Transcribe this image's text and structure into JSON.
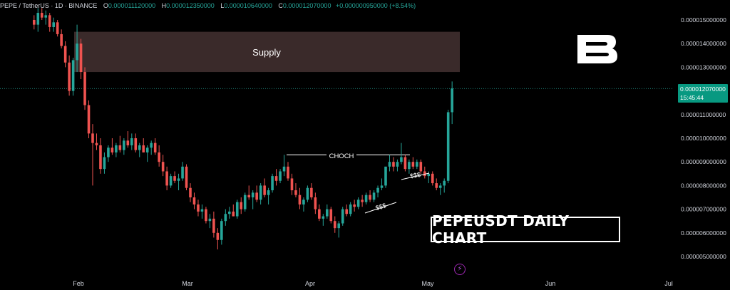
{
  "header": {
    "symbol": "PEPE / TetherUS · 1D · BINANCE",
    "o_label": "O",
    "o_value": "0.000011120000",
    "h_label": "H",
    "h_value": "0.000012350000",
    "l_label": "L",
    "l_value": "0.000010640000",
    "c_label": "C",
    "c_value": "0.000012070000",
    "change": "+0.000000950000 (+8.54%)"
  },
  "colors": {
    "up": "#26a69a",
    "down": "#ef5350",
    "supply": "#3a2a2a",
    "background": "#000000"
  },
  "title_box": "PEPEUSDT DAILY CHART",
  "price_tag": {
    "price": "0.000012070000",
    "countdown": "15:45:44"
  },
  "annotations": {
    "supply": "Supply",
    "choch": "CHOCH",
    "liq1": "$$$",
    "liq2": "$$$"
  },
  "chart_data": {
    "type": "candlestick",
    "y_axis_ticks": [
      "0.000015000000",
      "0.000014000000",
      "0.000013000000",
      "0.000012000000",
      "0.000011000000",
      "0.000010000000",
      "0.000009000000",
      "0.000008000000",
      "0.000007000000",
      "0.000006000000",
      "0.000005000000"
    ],
    "x_axis_ticks": [
      "Feb",
      "Mar",
      "Apr",
      "May",
      "Jun",
      "Jul"
    ],
    "ylim": [
      4.5e-06,
      1.59e-05
    ],
    "supply_zone": [
      1.28e-05,
      1.45e-05
    ],
    "choch_level": 9.3e-06,
    "candles": [
      [
        1.5e-05,
        1.52e-05,
        1.46e-05,
        1.48e-05
      ],
      [
        1.48e-05,
        1.55e-05,
        1.45e-05,
        1.53e-05
      ],
      [
        1.53e-05,
        1.55e-05,
        1.5e-05,
        1.51e-05
      ],
      [
        1.51e-05,
        1.54e-05,
        1.48e-05,
        1.52e-05
      ],
      [
        1.52e-05,
        1.53e-05,
        1.45e-05,
        1.47e-05
      ],
      [
        1.47e-05,
        1.51e-05,
        1.45e-05,
        1.49e-05
      ],
      [
        1.49e-05,
        1.5e-05,
        1.43e-05,
        1.44e-05
      ],
      [
        1.44e-05,
        1.46e-05,
        1.38e-05,
        1.39e-05
      ],
      [
        1.39e-05,
        1.41e-05,
        1.3e-05,
        1.32e-05
      ],
      [
        1.32e-05,
        1.35e-05,
        1.18e-05,
        1.2e-05
      ],
      [
        1.2e-05,
        1.34e-05,
        1.18e-05,
        1.33e-05
      ],
      [
        1.33e-05,
        1.48e-05,
        1.28e-05,
        1.4e-05
      ],
      [
        1.4e-05,
        1.42e-05,
        1.25e-05,
        1.28e-05
      ],
      [
        1.28e-05,
        1.3e-05,
        1.12e-05,
        1.14e-05
      ],
      [
        1.14e-05,
        1.16e-05,
        1e-05,
        1.02e-05
      ],
      [
        1.02e-05,
        1.06e-05,
        8e-06,
        9.8e-06
      ],
      [
        9.8e-06,
        1.02e-05,
        9.5e-06,
        9.7e-06
      ],
      [
        9.7e-06,
        1e-05,
        8.5e-06,
        8.7e-06
      ],
      [
        8.7e-06,
        9.4e-06,
        8.5e-06,
        9.2e-06
      ],
      [
        9.2e-06,
        9.7e-06,
        9e-06,
        9.6e-06
      ],
      [
        9.6e-06,
        1e-05,
        9.3e-06,
        9.4e-06
      ],
      [
        9.4e-06,
        9.8e-06,
        9.2e-06,
        9.7e-06
      ],
      [
        9.7e-06,
        1.01e-05,
        9.4e-06,
        9.5e-06
      ],
      [
        9.5e-06,
        1e-05,
        9.3e-06,
        9.9e-06
      ],
      [
        9.9e-06,
        1.03e-05,
        9.6e-06,
        9.7e-06
      ],
      [
        9.7e-06,
        1.02e-05,
        9.5e-06,
        1e-05
      ],
      [
        1e-05,
        1.02e-05,
        9.4e-06,
        9.5e-06
      ],
      [
        9.5e-06,
        9.8e-06,
        9.2e-06,
        9.7e-06
      ],
      [
        9.7e-06,
        1e-05,
        9.4e-06,
        9.4e-06
      ],
      [
        9.4e-06,
        9.7e-06,
        9e-06,
        9.6e-06
      ],
      [
        9.6e-06,
        9.9e-06,
        9.3e-06,
        9.8e-06
      ],
      [
        9.8e-06,
        1e-05,
        9.3e-06,
        9.4e-06
      ],
      [
        9.4e-06,
        9.7e-06,
        8.8e-06,
        9e-06
      ],
      [
        9e-06,
        9.3e-06,
        8.4e-06,
        8.6e-06
      ],
      [
        8.6e-06,
        8.8e-06,
        7.8e-06,
        8e-06
      ],
      [
        8e-06,
        8.5e-06,
        7.9e-06,
        8.4e-06
      ],
      [
        8.4e-06,
        8.6e-06,
        8.1e-06,
        8.2e-06
      ],
      [
        8.2e-06,
        8.5e-06,
        7.8e-06,
        8.3e-06
      ],
      [
        8.3e-06,
        9e-06,
        8.2e-06,
        8.8e-06
      ],
      [
        8.8e-06,
        8.9e-06,
        7.8e-06,
        7.9e-06
      ],
      [
        7.9e-06,
        8.1e-06,
        7.3e-06,
        7.5e-06
      ],
      [
        7.5e-06,
        7.7e-06,
        7e-06,
        7.2e-06
      ],
      [
        7.2e-06,
        7.4e-06,
        6.7e-06,
        6.9e-06
      ],
      [
        6.9e-06,
        7.2e-06,
        6.6e-06,
        7e-06
      ],
      [
        7e-06,
        7.1e-06,
        6.4e-06,
        6.5e-06
      ],
      [
        6.5e-06,
        6.8e-06,
        6.2e-06,
        6.6e-06
      ],
      [
        6.6e-06,
        6.9e-06,
        5.8e-06,
        6e-06
      ],
      [
        6e-06,
        6.2e-06,
        5.3e-06,
        5.7e-06
      ],
      [
        5.7e-06,
        6.6e-06,
        5.5e-06,
        6.5e-06
      ],
      [
        6.5e-06,
        7e-06,
        6.3e-06,
        6.8e-06
      ],
      [
        6.8e-06,
        7.1e-06,
        6.6e-06,
        6.9e-06
      ],
      [
        6.9e-06,
        7.2e-06,
        6.7e-06,
        6.7e-06
      ],
      [
        6.7e-06,
        7.4e-06,
        6.6e-06,
        7.3e-06
      ],
      [
        7.3e-06,
        7.5e-06,
        6.8e-06,
        7e-06
      ],
      [
        7e-06,
        7.7e-06,
        6.9e-06,
        7.6e-06
      ],
      [
        7.6e-06,
        8e-06,
        7.4e-06,
        7.5e-06
      ],
      [
        7.5e-06,
        7.8e-06,
        7e-06,
        7.7e-06
      ],
      [
        7.7e-06,
        8e-06,
        7.3e-06,
        7.4e-06
      ],
      [
        7.4e-06,
        8.1e-06,
        7.2e-06,
        8e-06
      ],
      [
        8e-06,
        8.3e-06,
        7.5e-06,
        7.6e-06
      ],
      [
        7.6e-06,
        7.9e-06,
        7.2e-06,
        7.8e-06
      ],
      [
        7.8e-06,
        8.5e-06,
        7.7e-06,
        8.4e-06
      ],
      [
        8.4e-06,
        8.7e-06,
        8e-06,
        8.2e-06
      ],
      [
        8.2e-06,
        8.7e-06,
        8.1e-06,
        8.6e-06
      ],
      [
        8.6e-06,
        9.3e-06,
        8.4e-06,
        8.8e-06
      ],
      [
        8.8e-06,
        9e-06,
        8.2e-06,
        8.3e-06
      ],
      [
        8.3e-06,
        8.5e-06,
        7.6e-06,
        7.8e-06
      ],
      [
        7.8e-06,
        8.1e-06,
        7.5e-06,
        7.6e-06
      ],
      [
        7.6e-06,
        7.9e-06,
        7e-06,
        7.2e-06
      ],
      [
        7.2e-06,
        7.5e-06,
        6.9e-06,
        7.4e-06
      ],
      [
        7.4e-06,
        8e-06,
        7.3e-06,
        7.9e-06
      ],
      [
        7.9e-06,
        8.1e-06,
        7.4e-06,
        7.5e-06
      ],
      [
        7.5e-06,
        7.7e-06,
        6.8e-06,
        7e-06
      ],
      [
        7e-06,
        7.2e-06,
        6.5e-06,
        6.6e-06
      ],
      [
        6.6e-06,
        6.8e-06,
        6.3e-06,
        6.7e-06
      ],
      [
        6.7e-06,
        7.2e-06,
        6.6e-06,
        7e-06
      ],
      [
        7e-06,
        7.1e-06,
        6.4e-06,
        6.5e-06
      ],
      [
        6.5e-06,
        6.7e-06,
        6e-06,
        6.2e-06
      ],
      [
        6.2e-06,
        6.5e-06,
        5.8e-06,
        6.4e-06
      ],
      [
        6.4e-06,
        7.1e-06,
        6.3e-06,
        7e-06
      ],
      [
        7e-06,
        7.2e-06,
        6.7e-06,
        6.8e-06
      ],
      [
        6.8e-06,
        7.3e-06,
        6.7e-06,
        7.2e-06
      ],
      [
        7.2e-06,
        7.4e-06,
        6.9e-06,
        7.1e-06
      ],
      [
        7.1e-06,
        7.5e-06,
        7e-06,
        7.4e-06
      ],
      [
        7.4e-06,
        7.6e-06,
        7.1e-06,
        7.3e-06
      ],
      [
        7.3e-06,
        7.7e-06,
        7.2e-06,
        7.6e-06
      ],
      [
        7.6e-06,
        7.8e-06,
        7.3e-06,
        7.4e-06
      ],
      [
        7.4e-06,
        7.8e-06,
        7.3e-06,
        7.7e-06
      ],
      [
        7.7e-06,
        8e-06,
        7.5e-06,
        7.9e-06
      ],
      [
        7.9e-06,
        8.3e-06,
        7.8e-06,
        8e-06
      ],
      [
        8e-06,
        8.8e-06,
        7.9e-06,
        8.8e-06
      ],
      [
        8.8e-06,
        9.3e-06,
        8.6e-06,
        9e-06
      ],
      [
        9e-06,
        9.2e-06,
        8.6e-06,
        8.8e-06
      ],
      [
        8.8e-06,
        9.1e-06,
        8.6e-06,
        9e-06
      ],
      [
        9e-06,
        9.8e-06,
        8.9e-06,
        9.2e-06
      ],
      [
        9.2e-06,
        9.3e-06,
        8.6e-06,
        8.7e-06
      ],
      [
        8.7e-06,
        9.1e-06,
        8.5e-06,
        9e-06
      ],
      [
        9e-06,
        9.2e-06,
        8.7e-06,
        8.8e-06
      ],
      [
        8.8e-06,
        9.1e-06,
        8.7e-06,
        9e-06
      ],
      [
        9e-06,
        9.1e-06,
        8.5e-06,
        8.6e-06
      ],
      [
        8.6e-06,
        8.8e-06,
        8.3e-06,
        8.4e-06
      ],
      [
        8.4e-06,
        8.6e-06,
        8.1e-06,
        8.5e-06
      ],
      [
        8.5e-06,
        8.6e-06,
        8e-06,
        8.1e-06
      ],
      [
        8.1e-06,
        8.3e-06,
        7.8e-06,
        7.9e-06
      ],
      [
        7.9e-06,
        8.1e-06,
        7.6e-06,
        8e-06
      ],
      [
        8e-06,
        8.3e-06,
        7.7e-06,
        8.2e-06
      ],
      [
        8.2e-06,
        1.12e-05,
        8.1e-06,
        1.11e-05
      ],
      [
        1.11e-05,
        1.24e-05,
        1.06e-05,
        1.21e-05
      ]
    ]
  }
}
